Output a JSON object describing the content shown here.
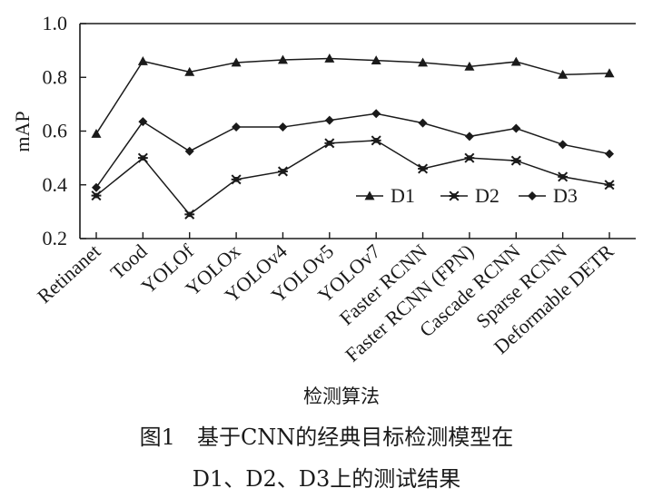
{
  "chart_data": {
    "type": "line",
    "categories": [
      "Retinanet",
      "Tood",
      "YOLOf",
      "YOLOx",
      "YOLOv4",
      "YOLOv5",
      "YOLOv7",
      "Faster RCNN",
      "Faster RCNN (FPN)",
      "Cascade RCNN",
      "Sparse RCNN",
      "Deformable DETR"
    ],
    "series": [
      {
        "name": "D1",
        "marker": "triangle",
        "values": [
          0.59,
          0.86,
          0.82,
          0.855,
          0.865,
          0.87,
          0.863,
          0.855,
          0.84,
          0.858,
          0.81,
          0.815
        ]
      },
      {
        "name": "D2",
        "marker": "asterisk",
        "values": [
          0.36,
          0.5,
          0.29,
          0.42,
          0.45,
          0.555,
          0.565,
          0.46,
          0.5,
          0.49,
          0.43,
          0.4
        ]
      },
      {
        "name": "D3",
        "marker": "diamond",
        "values": [
          0.39,
          0.635,
          0.525,
          0.615,
          0.615,
          0.64,
          0.665,
          0.63,
          0.58,
          0.61,
          0.55,
          0.515
        ]
      }
    ],
    "ylabel": "mAP",
    "xlabel": "检测算法",
    "ylim": [
      0.2,
      1.0
    ],
    "yticks": [
      "0.2",
      "0.4",
      "0.6",
      "0.8",
      "1.0"
    ],
    "grid": false,
    "legend": "bottom-right",
    "colors": {
      "line": "#1a1a1a"
    }
  },
  "caption": {
    "line1": "图1　基于CNN的经典目标检测模型在",
    "line2": "D1、D2、D3上的测试结果"
  }
}
